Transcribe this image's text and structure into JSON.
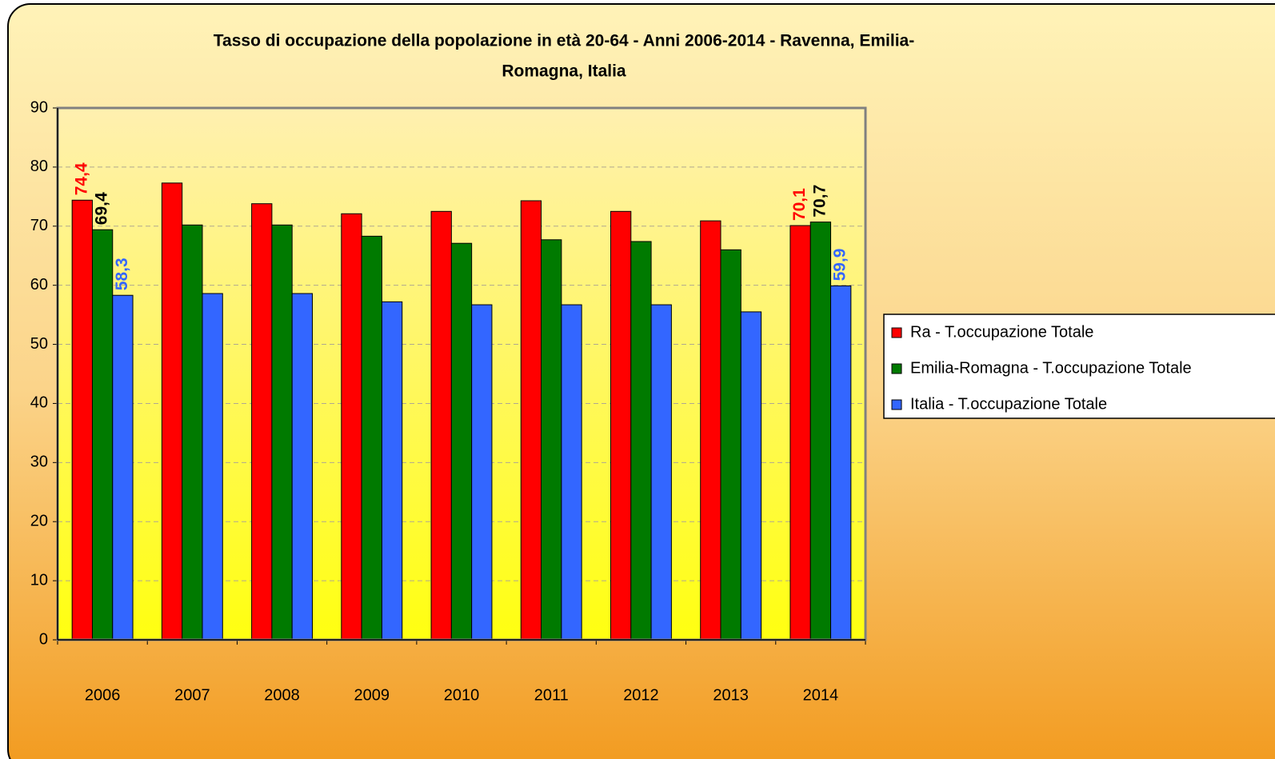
{
  "chart_data": {
    "type": "bar",
    "title": [
      "Tasso di occupazione della popolazione in età 20-64 - Anni 2006-2014 - Ravenna, Emilia-",
      "Romagna, Italia"
    ],
    "categories": [
      "2006",
      "2007",
      "2008",
      "2009",
      "2010",
      "2011",
      "2012",
      "2013",
      "2014"
    ],
    "series": [
      {
        "name": "Ra - T.occupazione Totale",
        "color": "#ff0000",
        "label_color": "#ff0000",
        "values": [
          74.4,
          77.3,
          73.8,
          72.1,
          72.5,
          74.3,
          72.5,
          70.9,
          70.1
        ],
        "value_labels": [
          "74,4",
          null,
          null,
          null,
          null,
          null,
          null,
          null,
          "70,1"
        ]
      },
      {
        "name": "Emilia-Romagna - T.occupazione Totale",
        "color": "#007a00",
        "label_color": "#000000",
        "values": [
          69.4,
          70.2,
          70.2,
          68.3,
          67.1,
          67.7,
          67.4,
          66.0,
          70.7
        ],
        "value_labels": [
          "69,4",
          null,
          null,
          null,
          null,
          null,
          null,
          null,
          "70,7"
        ]
      },
      {
        "name": "Italia - T.occupazione Totale",
        "color": "#3366ff",
        "label_color": "#3366ff",
        "values": [
          58.3,
          58.6,
          58.6,
          57.2,
          56.7,
          56.7,
          56.7,
          55.5,
          59.9
        ],
        "value_labels": [
          "58,3",
          null,
          null,
          null,
          null,
          null,
          null,
          null,
          "59,9"
        ]
      }
    ],
    "ylim": [
      0,
      90
    ],
    "yticks": [
      0,
      10,
      20,
      30,
      40,
      50,
      60,
      70,
      80,
      90
    ],
    "grid": true,
    "legend": "right"
  }
}
